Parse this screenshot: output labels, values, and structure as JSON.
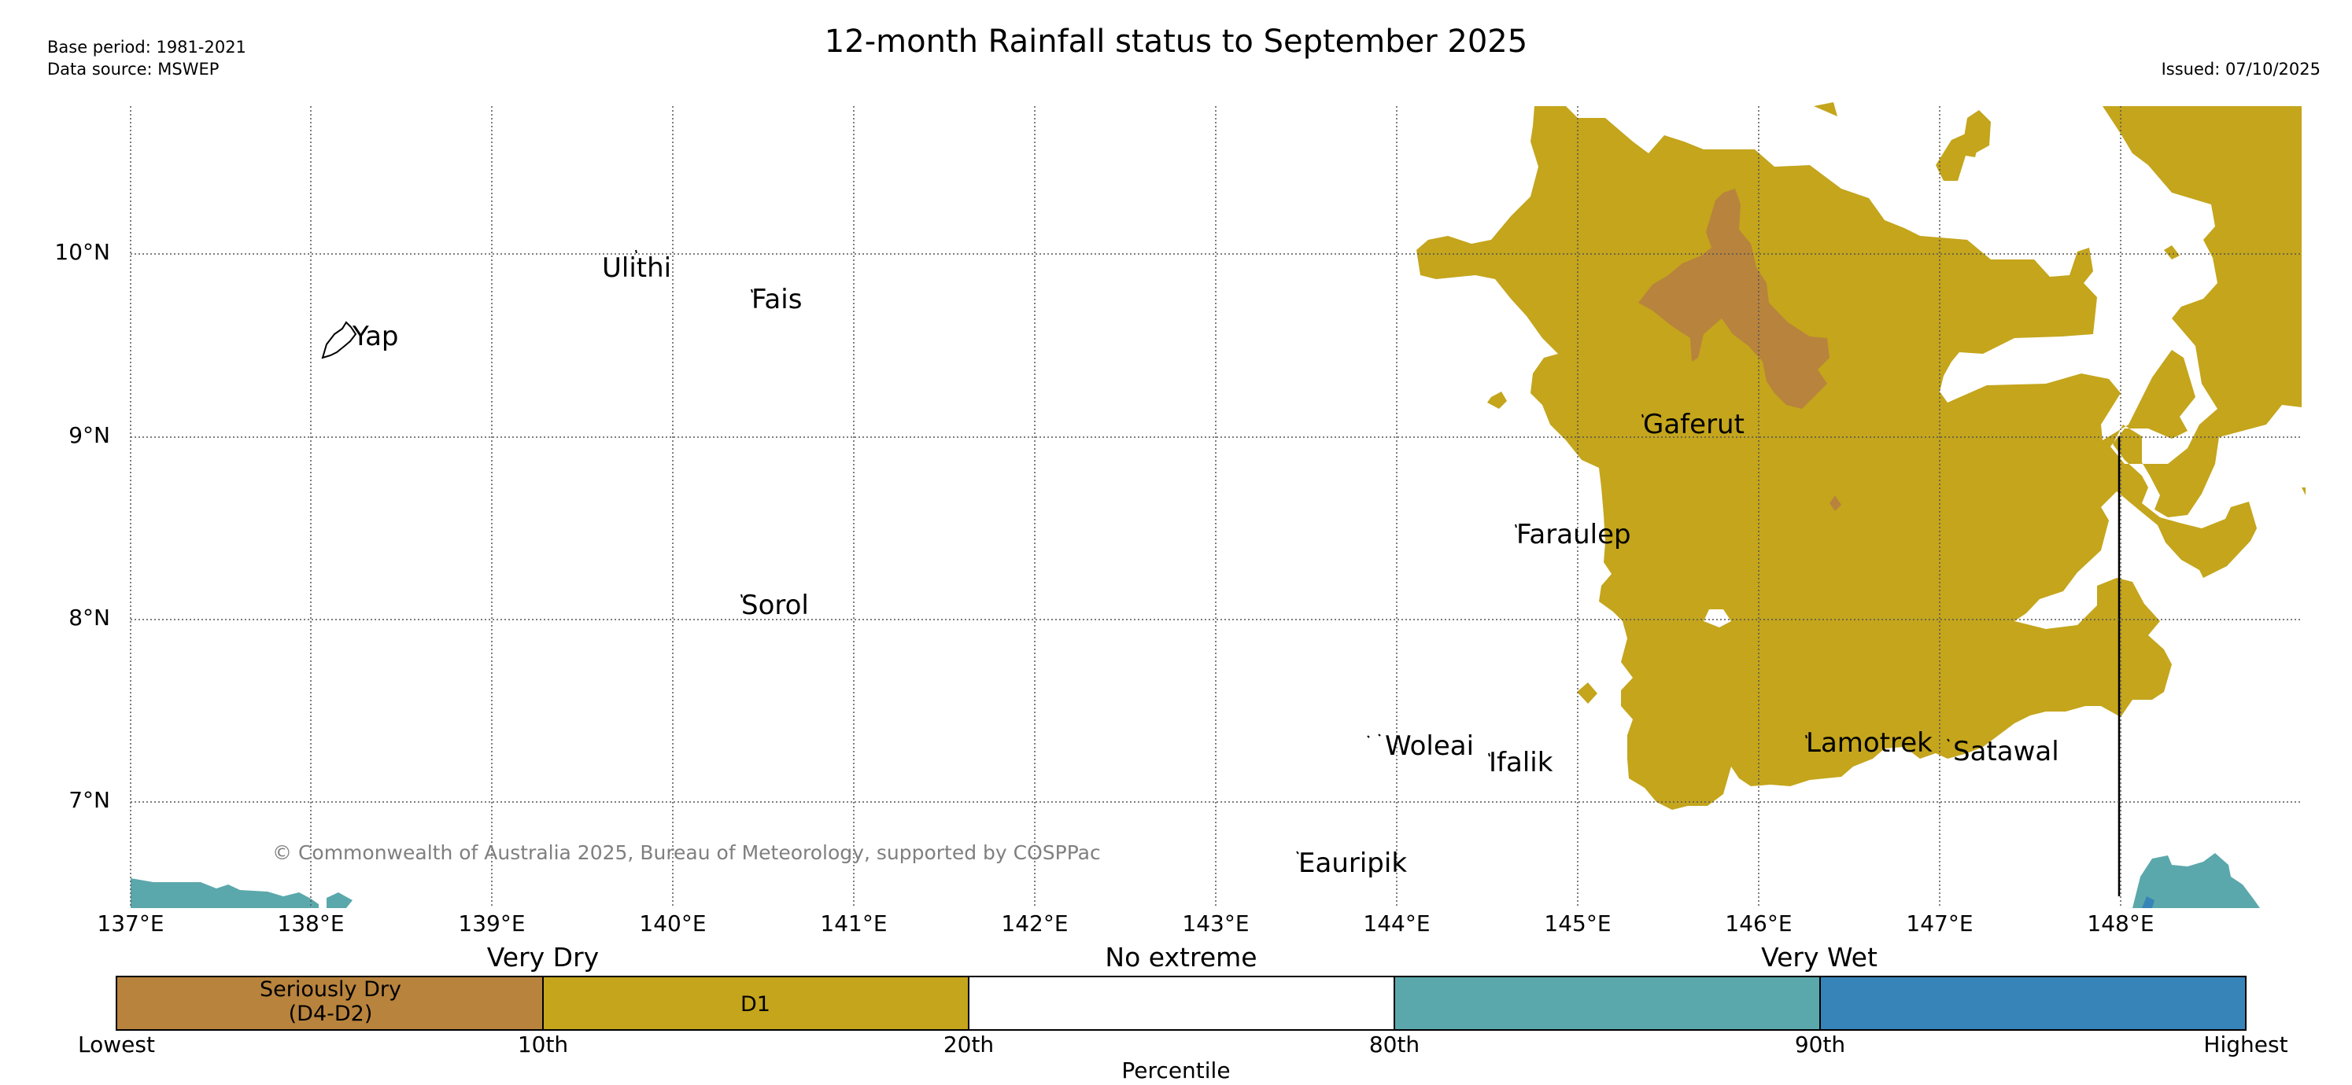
{
  "header": {
    "title": "12-month Rainfall status to September 2025",
    "base_period": "Base period: 1981-2021",
    "data_source": "Data source: MSWEP",
    "issued": "Issued: 07/10/2025"
  },
  "map": {
    "lat_labels": [
      "10°N",
      "9°N",
      "8°N",
      "7°N"
    ],
    "lon_labels": [
      "137°E",
      "138°E",
      "139°E",
      "140°E",
      "141°E",
      "142°E",
      "143°E",
      "144°E",
      "145°E",
      "146°E",
      "147°E",
      "148°E"
    ],
    "islands": [
      "Ulithi",
      "Fais",
      "Yap",
      "Gaferut",
      "Faraulep",
      "Sorol",
      "Woleai",
      "Ifalik",
      "Lamotrek",
      "Satawal",
      "Eauripik"
    ],
    "copyright": "© Commonwealth of Australia 2025, Bureau of Meteorology, supported by COSPPac"
  },
  "legend": {
    "group_labels": [
      "Very Dry",
      "No extreme",
      "Very Wet"
    ],
    "swatch_labels": [
      "Seriously Dry\n(D4-D2)",
      "D1"
    ],
    "tick_labels": [
      "Lowest",
      "10th",
      "20th",
      "80th",
      "90th",
      "Highest"
    ],
    "axis_label": "Percentile",
    "colors": {
      "seriously_dry": "#b8833d",
      "d1": "#c4a51c",
      "no_extreme": "#ffffff",
      "very_wet": "#5ba8ac",
      "wettest": "#3784b9"
    }
  }
}
